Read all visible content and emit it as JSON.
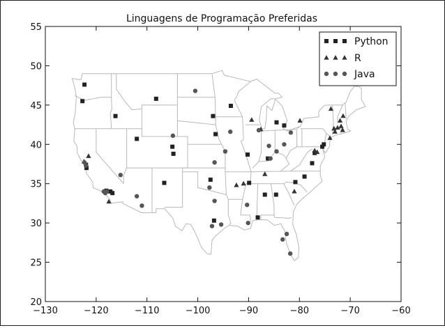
{
  "chart_data": {
    "type": "scatter",
    "title": "Linguagens de Programação Preferidas",
    "xlabel": "",
    "ylabel": "",
    "xlim": [
      -130,
      -60
    ],
    "ylim": [
      20,
      55
    ],
    "xticks": [
      "−130",
      "−120",
      "−110",
      "−100",
      "−90",
      "−80",
      "−70",
      "−60"
    ],
    "yticks": [
      "20",
      "25",
      "30",
      "35",
      "40",
      "45",
      "50",
      "55"
    ],
    "grid": false,
    "legend_position": "top-right",
    "background_map": "us-states-outline",
    "series": [
      {
        "name": "Python",
        "marker": "square",
        "color": "#222222",
        "points": [
          [
            -122.3,
            47.6
          ],
          [
            -122.7,
            45.5
          ],
          [
            -122.0,
            37.4
          ],
          [
            -121.9,
            37.0
          ],
          [
            -117.2,
            34.0
          ],
          [
            -118.0,
            34.1
          ],
          [
            -116.8,
            33.8
          ],
          [
            -116.2,
            43.6
          ],
          [
            -112.0,
            40.7
          ],
          [
            -108.2,
            45.8
          ],
          [
            -105.0,
            39.7
          ],
          [
            -104.8,
            38.8
          ],
          [
            -106.6,
            35.1
          ],
          [
            -97.0,
            43.6
          ],
          [
            -96.5,
            41.3
          ],
          [
            -93.5,
            44.9
          ],
          [
            -90.2,
            38.7
          ],
          [
            -97.5,
            35.5
          ],
          [
            -96.8,
            30.3
          ],
          [
            -88.2,
            30.7
          ],
          [
            -86.8,
            33.6
          ],
          [
            -84.6,
            33.6
          ],
          [
            -89.9,
            35.1
          ],
          [
            -86.2,
            38.2
          ],
          [
            -84.5,
            42.8
          ],
          [
            -83.0,
            42.4
          ],
          [
            -80.8,
            35.2
          ],
          [
            -79.0,
            35.9
          ],
          [
            -77.5,
            37.6
          ],
          [
            -77.0,
            38.9
          ],
          [
            -75.5,
            39.7
          ],
          [
            -75.2,
            40.0
          ]
        ]
      },
      {
        "name": "R",
        "marker": "triangle",
        "color": "#333333",
        "points": [
          [
            -122.4,
            37.8
          ],
          [
            -121.5,
            38.5
          ],
          [
            -117.5,
            32.7
          ],
          [
            -87.6,
            41.9
          ],
          [
            -89.4,
            43.1
          ],
          [
            -91.0,
            35.0
          ],
          [
            -92.4,
            34.8
          ],
          [
            -86.8,
            36.2
          ],
          [
            -81.0,
            34.0
          ],
          [
            -79.9,
            43.0
          ],
          [
            -73.8,
            44.5
          ],
          [
            -73.2,
            42.0
          ],
          [
            -72.5,
            42.1
          ],
          [
            -71.8,
            42.3
          ],
          [
            -71.5,
            41.8
          ],
          [
            -72.0,
            43.0
          ],
          [
            -71.4,
            43.6
          ],
          [
            -73.0,
            41.6
          ],
          [
            -74.0,
            40.8
          ],
          [
            -77.0,
            39.2
          ],
          [
            -76.5,
            39.0
          ]
        ]
      },
      {
        "name": "Java",
        "marker": "circle",
        "color": "#555555",
        "points": [
          [
            -122.3,
            37.7
          ],
          [
            -122.0,
            37.3
          ],
          [
            -118.5,
            34.0
          ],
          [
            -118.2,
            33.8
          ],
          [
            -117.9,
            34.0
          ],
          [
            -115.2,
            36.1
          ],
          [
            -112.0,
            33.4
          ],
          [
            -111.0,
            32.2
          ],
          [
            -104.9,
            41.1
          ],
          [
            -100.5,
            46.8
          ],
          [
            -96.7,
            37.7
          ],
          [
            -94.6,
            39.1
          ],
          [
            -93.6,
            41.6
          ],
          [
            -88.0,
            41.8
          ],
          [
            -86.0,
            39.8
          ],
          [
            -85.7,
            38.2
          ],
          [
            -84.5,
            39.1
          ],
          [
            -83.0,
            40.0
          ],
          [
            -81.7,
            41.5
          ],
          [
            -97.7,
            34.5
          ],
          [
            -96.7,
            32.8
          ],
          [
            -95.4,
            29.8
          ],
          [
            -97.2,
            29.6
          ],
          [
            -90.3,
            32.3
          ],
          [
            -90.1,
            30.0
          ],
          [
            -82.5,
            28.6
          ],
          [
            -83.3,
            27.9
          ],
          [
            -81.8,
            26.1
          ]
        ]
      }
    ]
  }
}
